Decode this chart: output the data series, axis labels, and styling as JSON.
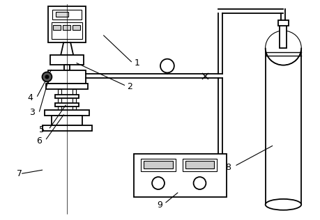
{
  "bg_color": "#ffffff",
  "line_color": "#000000",
  "lw": 1.3,
  "tlw": 0.8
}
